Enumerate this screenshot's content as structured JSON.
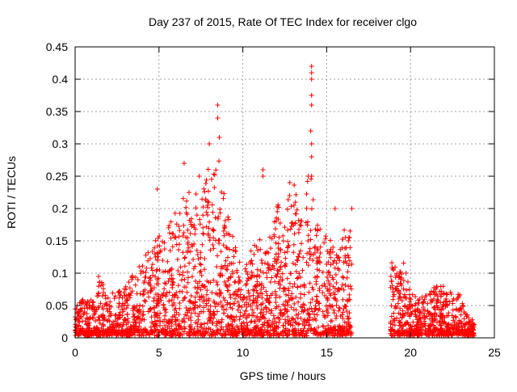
{
  "chart_data": {
    "type": "scatter",
    "title": "Day 237 of 2015, Rate Of TEC Index for receiver clgo",
    "xlabel": "GPS time / hours",
    "ylabel": "ROTI / TECUs",
    "xlim": [
      0,
      25
    ],
    "ylim": [
      0,
      0.45
    ],
    "xticks": [
      0,
      5,
      10,
      15,
      20,
      25
    ],
    "xtick_labels": [
      "0",
      "5",
      "10",
      "15",
      "20",
      "25"
    ],
    "yticks": [
      0,
      0.05,
      0.1,
      0.15,
      0.2,
      0.25,
      0.3,
      0.35,
      0.4,
      0.45
    ],
    "ytick_labels": [
      "0",
      "0.05",
      "0.1",
      "0.15",
      "0.2",
      "0.25",
      "0.3",
      "0.35",
      "0.4",
      "0.45"
    ],
    "grid": true,
    "grid_style": "dotted",
    "marker": "+",
    "marker_color": "#ff0000",
    "data_gap_hours": [
      16.7,
      18.7
    ],
    "envelope": {
      "x": [
        0,
        0.5,
        1,
        1.5,
        2,
        2.5,
        3,
        3.5,
        4,
        4.5,
        5,
        5.5,
        6,
        6.5,
        7,
        7.5,
        8,
        8.5,
        9,
        9.5,
        10,
        10.5,
        11,
        11.5,
        12,
        12.5,
        13,
        13.5,
        14,
        14.5,
        15,
        15.5,
        16,
        16.5,
        18.8,
        19.2,
        19.6,
        20,
        20.5,
        21,
        21.5,
        22,
        22.5,
        23,
        23.5
      ],
      "y": [
        0.05,
        0.06,
        0.06,
        0.09,
        0.07,
        0.07,
        0.08,
        0.1,
        0.12,
        0.14,
        0.16,
        0.17,
        0.2,
        0.22,
        0.24,
        0.23,
        0.27,
        0.3,
        0.2,
        0.15,
        0.11,
        0.14,
        0.16,
        0.14,
        0.22,
        0.2,
        0.24,
        0.21,
        0.26,
        0.19,
        0.16,
        0.14,
        0.17,
        0.18,
        0.12,
        0.11,
        0.12,
        0.07,
        0.06,
        0.07,
        0.08,
        0.08,
        0.07,
        0.07,
        0.03
      ]
    },
    "spikes": [
      {
        "x": 8.5,
        "y": 0.36
      },
      {
        "x": 8.5,
        "y": 0.34
      },
      {
        "x": 8.6,
        "y": 0.31
      },
      {
        "x": 6.5,
        "y": 0.27
      },
      {
        "x": 7.4,
        "y": 0.25
      },
      {
        "x": 8.0,
        "y": 0.3
      },
      {
        "x": 11.2,
        "y": 0.26
      },
      {
        "x": 11.2,
        "y": 0.25
      },
      {
        "x": 13.9,
        "y": 0.25
      },
      {
        "x": 14.1,
        "y": 0.42
      },
      {
        "x": 14.1,
        "y": 0.41
      },
      {
        "x": 14.1,
        "y": 0.4
      },
      {
        "x": 14.1,
        "y": 0.375
      },
      {
        "x": 14.1,
        "y": 0.36
      },
      {
        "x": 14.05,
        "y": 0.32
      },
      {
        "x": 14.1,
        "y": 0.3
      },
      {
        "x": 14.1,
        "y": 0.28
      },
      {
        "x": 14.1,
        "y": 0.25
      },
      {
        "x": 15.5,
        "y": 0.2
      },
      {
        "x": 16.5,
        "y": 0.2
      },
      {
        "x": 12.8,
        "y": 0.24
      },
      {
        "x": 4.9,
        "y": 0.23
      },
      {
        "x": 1.4,
        "y": 0.095
      }
    ]
  }
}
